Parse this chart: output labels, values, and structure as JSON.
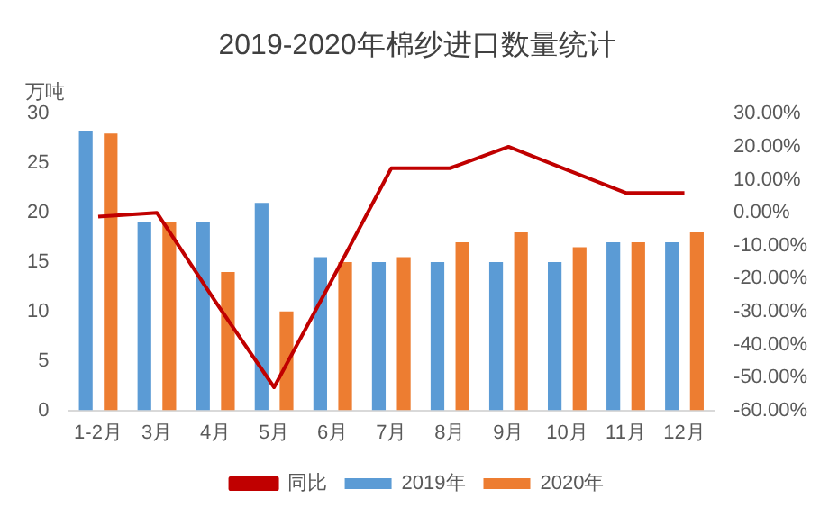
{
  "chart_data": {
    "type": "bar",
    "title": "2019-2020年棉纱进口数量统计",
    "ylabel": "万吨",
    "categories": [
      "1-2月",
      "3月",
      "4月",
      "5月",
      "6月",
      "7月",
      "8月",
      "9月",
      "10月",
      "11月",
      "12月"
    ],
    "series": [
      {
        "name": "2019年",
        "color": "#5b9bd5",
        "values": [
          28.3,
          19,
          19,
          21,
          15.5,
          15,
          15,
          15,
          15,
          17,
          17
        ]
      },
      {
        "name": "2020年",
        "color": "#ed7d31",
        "values": [
          28,
          19,
          14,
          10,
          15,
          15.5,
          17,
          18,
          16.5,
          17,
          18
        ]
      },
      {
        "name": "同比",
        "type": "line",
        "axis": "y2",
        "color": "#c00000",
        "values": [
          -1.2,
          0,
          -27,
          -53,
          -20,
          13.5,
          13.5,
          20,
          13,
          6,
          6
        ]
      }
    ],
    "ylim": [
      0,
      30
    ],
    "yticks": [
      0,
      5,
      10,
      15,
      20,
      25,
      30
    ],
    "y2lim": [
      -60,
      30
    ],
    "y2ticks": [
      {
        "value": -60,
        "label": "-60.00%"
      },
      {
        "value": -50,
        "label": "-50.00%"
      },
      {
        "value": -40,
        "label": "-40.00%"
      },
      {
        "value": -30,
        "label": "-30.00%"
      },
      {
        "value": -20,
        "label": "-20.00%"
      },
      {
        "value": -10,
        "label": "-10.00%"
      },
      {
        "value": 0,
        "label": "0.00%"
      },
      {
        "value": 10,
        "label": "10.00%"
      },
      {
        "value": 20,
        "label": "20.00%"
      },
      {
        "value": 30,
        "label": "30.00%"
      }
    ],
    "legend": "bottom",
    "marker": "none"
  }
}
